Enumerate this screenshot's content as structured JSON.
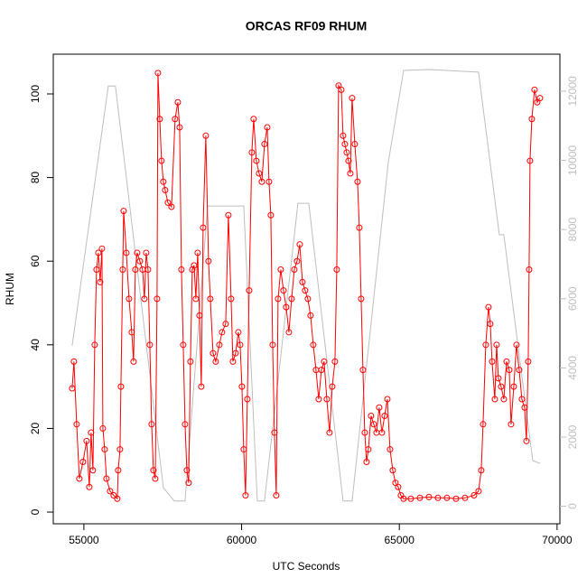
{
  "chart_data": {
    "type": "line",
    "markers": "open-circle",
    "title": "ORCAS RF09 RHUM",
    "x_label": "UTC Seconds",
    "y_label": "RHUM",
    "xlim": [
      54030,
      70090
    ],
    "xticks": [
      55000,
      60000,
      65000,
      70000
    ],
    "ylim": [
      -2.8,
      109.5
    ],
    "yticks": [
      0,
      20,
      40,
      60,
      80,
      100
    ],
    "y2lim": [
      -507,
      13070
    ],
    "y2ticks": [
      0,
      2000,
      4000,
      6000,
      8000,
      10000,
      12000
    ],
    "y2_color": "#bebebe",
    "series": [
      {
        "color": "#ff0000",
        "x": [
          54628,
          54685,
          54771,
          54857,
          54971,
          55086,
          55172,
          55229,
          55286,
          55344,
          55401,
          55458,
          55515,
          55573,
          55601,
          55658,
          55716,
          55830,
          55945,
          56059,
          56088,
          56145,
          56174,
          56231,
          56260,
          56346,
          56432,
          56517,
          56575,
          56632,
          56689,
          56775,
          56861,
          56918,
          56975,
          57033,
          57090,
          57147,
          57205,
          57262,
          57319,
          57348,
          57405,
          57462,
          57519,
          57577,
          57663,
          57777,
          57892,
          57978,
          58035,
          58092,
          58149,
          58207,
          58264,
          58321,
          58378,
          58436,
          58493,
          58550,
          58607,
          58665,
          58722,
          58779,
          58865,
          58951,
          59008,
          59094,
          59180,
          59295,
          59380,
          59495,
          59581,
          59667,
          59724,
          59810,
          59896,
          59953,
          60010,
          60068,
          60125,
          60182,
          60239,
          60325,
          60382,
          60468,
          60554,
          60640,
          60726,
          60812,
          60869,
          60926,
          60984,
          61041,
          61098,
          61155,
          61241,
          61327,
          61413,
          61499,
          61585,
          61671,
          61757,
          61843,
          61929,
          62014,
          62100,
          62186,
          62272,
          62358,
          62444,
          62530,
          62616,
          62702,
          62787,
          62873,
          62959,
          63016,
          63074,
          63160,
          63217,
          63274,
          63331,
          63389,
          63446,
          63503,
          63589,
          63675,
          63732,
          63789,
          63847,
          63904,
          63961,
          64018,
          64104,
          64190,
          64276,
          64362,
          64448,
          64534,
          64620,
          64706,
          64791,
          64877,
          64963,
          65049,
          65135,
          65364,
          65650,
          65937,
          66223,
          66509,
          66796,
          67082,
          67368,
          67511,
          67597,
          67655,
          67740,
          67826,
          67884,
          67941,
          68027,
          68084,
          68141,
          68227,
          68313,
          68399,
          68485,
          68542,
          68628,
          68714,
          68800,
          68886,
          68972,
          69029,
          69086,
          69115,
          69143,
          69200,
          69286,
          69372,
          69458
        ],
        "values": [
          29.6,
          36,
          21,
          8,
          12,
          17,
          6,
          19,
          10,
          40,
          58,
          62,
          55,
          63,
          20,
          15,
          8,
          5,
          4,
          3.2,
          10,
          15,
          30,
          58,
          72,
          62,
          51,
          43,
          36,
          58,
          62,
          60,
          58,
          51,
          62,
          58,
          40,
          21,
          10,
          8,
          51,
          105,
          94,
          84,
          79,
          77,
          74,
          73,
          94,
          98,
          92,
          58,
          40,
          21,
          10,
          7,
          36,
          58,
          59,
          51,
          62,
          47,
          30,
          68,
          90,
          60,
          51,
          38,
          36,
          40,
          43,
          45,
          71,
          51,
          36,
          38,
          43,
          40,
          30,
          15,
          4,
          27,
          53,
          86,
          94,
          84,
          81,
          79,
          88,
          92,
          79,
          71,
          40,
          19,
          4,
          51,
          58,
          53,
          49,
          43,
          51,
          58,
          60,
          64,
          55,
          53,
          51,
          47,
          40,
          34,
          27,
          34,
          36,
          27,
          19,
          30,
          36,
          58,
          102,
          101,
          90,
          88,
          86,
          84,
          81,
          99,
          88,
          79,
          68,
          51,
          34,
          19,
          12,
          15,
          23,
          21,
          19,
          25,
          19,
          23,
          27,
          15,
          10,
          7,
          6,
          4,
          3.2,
          3.2,
          3.4,
          3.6,
          3.4,
          3.4,
          3.2,
          3.4,
          4,
          5,
          10,
          21,
          40,
          49,
          45,
          36,
          27,
          40,
          32,
          30,
          27,
          36,
          34,
          21,
          30,
          40,
          34,
          27,
          25,
          17,
          36,
          58,
          84,
          94,
          101,
          98,
          99
        ]
      },
      {
        "color": "#bebebe",
        "axis": "y2",
        "x": [
          54628,
          55773,
          56000,
          57519,
          57863,
          58206,
          58922,
          59065,
          60068,
          60497,
          60726,
          61785,
          62128,
          63217,
          63503,
          64648,
          65134,
          65935,
          67510,
          68170,
          68313,
          69228,
          69456
        ],
        "values": [
          4640,
          12150,
          12150,
          535,
          150,
          150,
          8680,
          8680,
          8680,
          150,
          150,
          8760,
          8760,
          150,
          150,
          9935,
          12600,
          12625,
          12550,
          7850,
          7850,
          1320,
          1240
        ]
      }
    ]
  }
}
